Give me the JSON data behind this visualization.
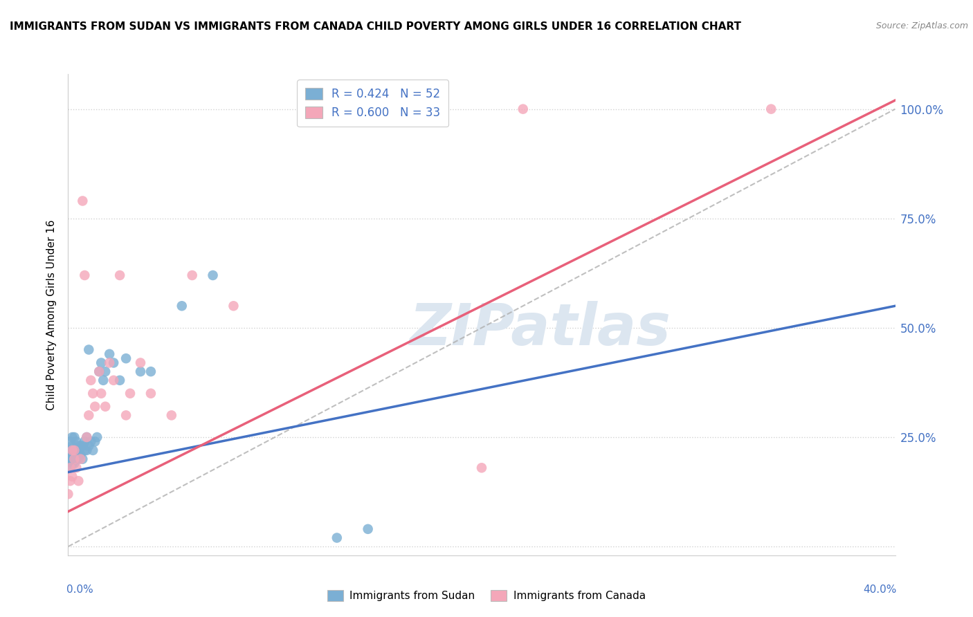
{
  "title": "IMMIGRANTS FROM SUDAN VS IMMIGRANTS FROM CANADA CHILD POVERTY AMONG GIRLS UNDER 16 CORRELATION CHART",
  "source": "Source: ZipAtlas.com",
  "ylabel": "Child Poverty Among Girls Under 16",
  "xlim": [
    0.0,
    0.4
  ],
  "ylim": [
    -0.02,
    1.08
  ],
  "sudan_R": 0.424,
  "sudan_N": 52,
  "canada_R": 0.6,
  "canada_N": 33,
  "sudan_color": "#7bafd4",
  "canada_color": "#f4a7b9",
  "sudan_line_color": "#4472c4",
  "canada_line_color": "#e8607a",
  "reference_line_color": "#b0b0b0",
  "background_color": "#ffffff",
  "grid_color": "#cccccc",
  "watermark_color": "#dce6f0",
  "legend_sudan_color": "#7bafd4",
  "legend_canada_color": "#f4a7b9",
  "sudan_line_x0": 0.0,
  "sudan_line_y0": 0.17,
  "sudan_line_x1": 0.4,
  "sudan_line_y1": 0.55,
  "canada_line_x0": 0.0,
  "canada_line_y0": 0.08,
  "canada_line_x1": 0.4,
  "canada_line_y1": 1.02,
  "sudan_points_x": [
    0.0,
    0.0,
    0.001,
    0.001,
    0.001,
    0.001,
    0.001,
    0.002,
    0.002,
    0.002,
    0.002,
    0.002,
    0.003,
    0.003,
    0.003,
    0.003,
    0.003,
    0.004,
    0.004,
    0.004,
    0.005,
    0.005,
    0.005,
    0.005,
    0.006,
    0.006,
    0.007,
    0.007,
    0.008,
    0.008,
    0.009,
    0.009,
    0.01,
    0.01,
    0.011,
    0.012,
    0.013,
    0.014,
    0.015,
    0.016,
    0.017,
    0.018,
    0.02,
    0.022,
    0.025,
    0.028,
    0.035,
    0.04,
    0.055,
    0.07,
    0.13,
    0.145
  ],
  "sudan_points_y": [
    0.2,
    0.22,
    0.18,
    0.2,
    0.21,
    0.22,
    0.24,
    0.19,
    0.21,
    0.22,
    0.23,
    0.25,
    0.19,
    0.2,
    0.21,
    0.22,
    0.25,
    0.2,
    0.22,
    0.24,
    0.2,
    0.21,
    0.22,
    0.23,
    0.21,
    0.23,
    0.2,
    0.23,
    0.22,
    0.24,
    0.22,
    0.25,
    0.23,
    0.45,
    0.24,
    0.22,
    0.24,
    0.25,
    0.4,
    0.42,
    0.38,
    0.4,
    0.44,
    0.42,
    0.38,
    0.43,
    0.4,
    0.4,
    0.55,
    0.62,
    0.02,
    0.04
  ],
  "canada_points_x": [
    0.0,
    0.001,
    0.001,
    0.002,
    0.002,
    0.003,
    0.003,
    0.004,
    0.005,
    0.006,
    0.007,
    0.008,
    0.009,
    0.01,
    0.011,
    0.012,
    0.013,
    0.015,
    0.016,
    0.018,
    0.02,
    0.022,
    0.025,
    0.028,
    0.03,
    0.035,
    0.04,
    0.05,
    0.06,
    0.08,
    0.2,
    0.22,
    0.34
  ],
  "canada_points_y": [
    0.12,
    0.15,
    0.18,
    0.16,
    0.22,
    0.2,
    0.22,
    0.18,
    0.15,
    0.2,
    0.79,
    0.62,
    0.25,
    0.3,
    0.38,
    0.35,
    0.32,
    0.4,
    0.35,
    0.32,
    0.42,
    0.38,
    0.62,
    0.3,
    0.35,
    0.42,
    0.35,
    0.3,
    0.62,
    0.55,
    0.18,
    1.0,
    1.0
  ]
}
